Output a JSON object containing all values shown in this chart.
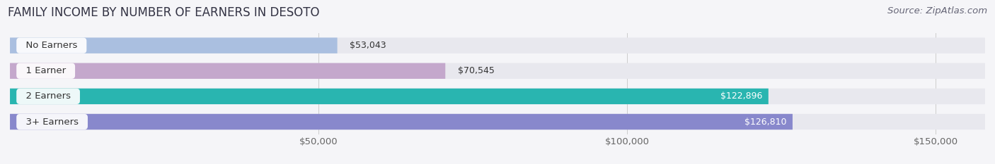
{
  "title": "FAMILY INCOME BY NUMBER OF EARNERS IN DESOTO",
  "source": "Source: ZipAtlas.com",
  "categories": [
    "No Earners",
    "1 Earner",
    "2 Earners",
    "3+ Earners"
  ],
  "values": [
    53043,
    70545,
    122896,
    126810
  ],
  "bar_colors": [
    "#aabfe0",
    "#c4a8cc",
    "#29b5b0",
    "#8888cc"
  ],
  "label_colors": [
    "#444444",
    "#444444",
    "#ffffff",
    "#ffffff"
  ],
  "xlim": [
    0,
    158000
  ],
  "xticks": [
    50000,
    100000,
    150000
  ],
  "xtick_labels": [
    "$50,000",
    "$100,000",
    "$150,000"
  ],
  "background_color": "#f5f5f8",
  "bar_background_color": "#e8e8ee",
  "bar_height": 0.62,
  "title_fontsize": 12,
  "source_fontsize": 9.5,
  "tick_fontsize": 9.5,
  "label_fontsize": 9,
  "cat_fontsize": 9.5
}
